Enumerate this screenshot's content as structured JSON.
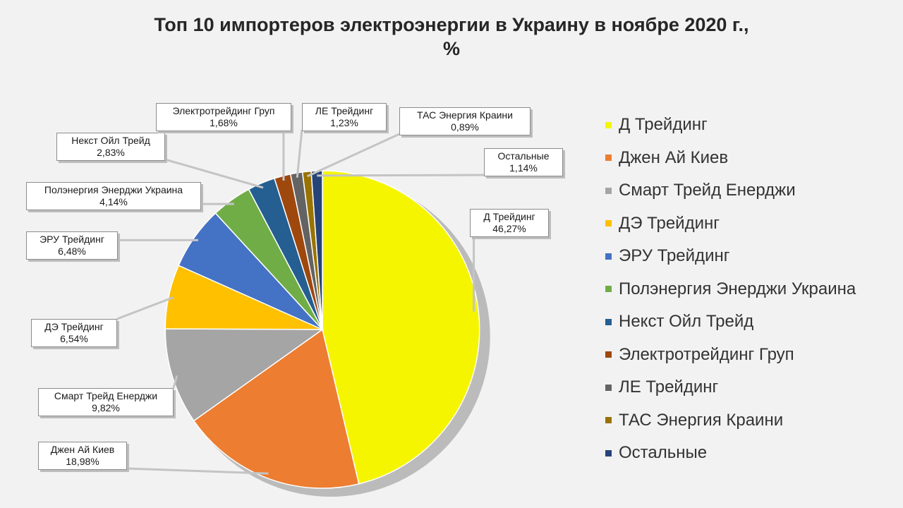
{
  "chart_data": {
    "type": "pie",
    "title": "Топ 10 импортеров электроэнергии в Украину в ноябре 2020 г.,\n%",
    "legend_position": "right",
    "slices": [
      {
        "name": "Д Трейдинг",
        "value": 46.27,
        "label": "46,27%",
        "color": "#f5f500"
      },
      {
        "name": "Джен Ай Киев",
        "value": 18.98,
        "label": "18,98%",
        "color": "#ed7d31"
      },
      {
        "name": "Смарт Трейд Енерджи",
        "value": 9.82,
        "label": "9,82%",
        "color": "#a5a5a5"
      },
      {
        "name": "ДЭ Трейдинг",
        "value": 6.54,
        "label": "6,54%",
        "color": "#ffc000"
      },
      {
        "name": "ЭРУ Трейдинг",
        "value": 6.48,
        "label": "6,48%",
        "color": "#4472c4"
      },
      {
        "name": "Полэнергия Энерджи Украина",
        "value": 4.14,
        "label": "4,14%",
        "color": "#70ad47"
      },
      {
        "name": "Некст Ойл Трейд",
        "value": 2.83,
        "label": "2,83%",
        "color": "#255e91"
      },
      {
        "name": "Электротрейдинг Груп",
        "value": 1.68,
        "label": "1,68%",
        "color": "#9e480e"
      },
      {
        "name": "ЛЕ Трейдинг",
        "value": 1.23,
        "label": "1,23%",
        "color": "#636363"
      },
      {
        "name": "ТАС Энергия Краини",
        "value": 0.89,
        "label": "0,89%",
        "color": "#997300"
      },
      {
        "name": "Остальные",
        "value": 1.14,
        "label": "1,14%",
        "color": "#264478"
      }
    ]
  }
}
